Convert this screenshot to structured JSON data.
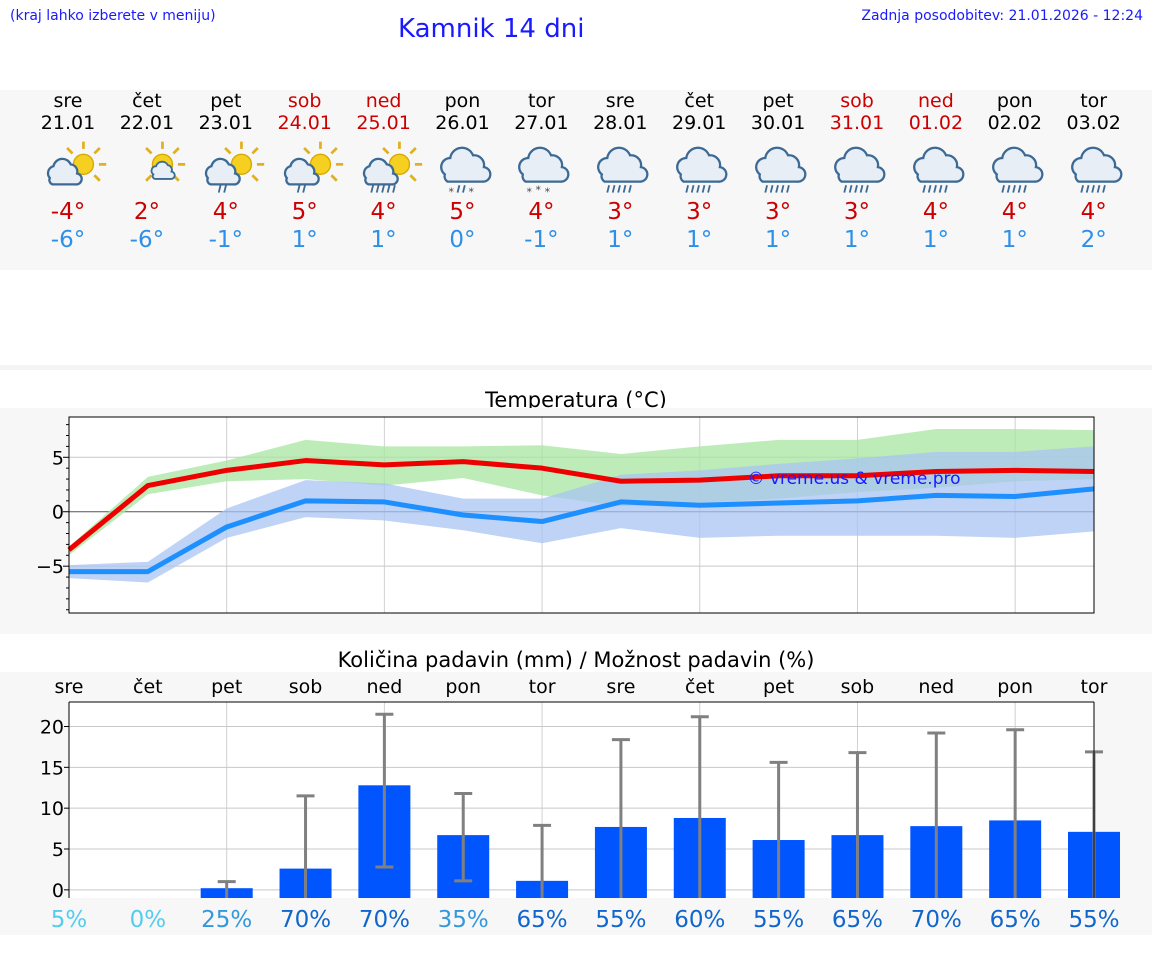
{
  "header": {
    "hint": "(kraj lahko izberete v meniju)",
    "title": "Kamnik 14 dni",
    "updated": "Zadnja posodobitev: 21.01.2026 - 12:24"
  },
  "days": [
    {
      "name": "sre",
      "date": "21.01",
      "weekend": false,
      "icon": "sun-cloud-icon",
      "max": "-4°",
      "min": "-6°"
    },
    {
      "name": "čet",
      "date": "22.01",
      "weekend": false,
      "icon": "sun-small-cloud-icon",
      "max": "2°",
      "min": "-6°"
    },
    {
      "name": "pet",
      "date": "23.01",
      "weekend": false,
      "icon": "sun-cloud-rain-icon",
      "max": "4°",
      "min": "-1°"
    },
    {
      "name": "sob",
      "date": "24.01",
      "weekend": true,
      "icon": "sun-cloud-rain-icon",
      "max": "5°",
      "min": "1°"
    },
    {
      "name": "ned",
      "date": "25.01",
      "weekend": true,
      "icon": "sun-cloud-heavy-rain-icon",
      "max": "4°",
      "min": "1°"
    },
    {
      "name": "pon",
      "date": "26.01",
      "weekend": false,
      "icon": "cloud-sleet-icon",
      "max": "5°",
      "min": "0°"
    },
    {
      "name": "tor",
      "date": "27.01",
      "weekend": false,
      "icon": "cloud-snow-icon",
      "max": "4°",
      "min": "-1°"
    },
    {
      "name": "sre",
      "date": "28.01",
      "weekend": false,
      "icon": "cloud-rain-icon",
      "max": "3°",
      "min": "1°"
    },
    {
      "name": "čet",
      "date": "29.01",
      "weekend": false,
      "icon": "cloud-rain-icon",
      "max": "3°",
      "min": "1°"
    },
    {
      "name": "pet",
      "date": "30.01",
      "weekend": false,
      "icon": "cloud-rain-icon",
      "max": "3°",
      "min": "1°"
    },
    {
      "name": "sob",
      "date": "31.01",
      "weekend": true,
      "icon": "cloud-rain-icon",
      "max": "3°",
      "min": "1°"
    },
    {
      "name": "ned",
      "date": "01.02",
      "weekend": true,
      "icon": "cloud-rain-icon",
      "max": "4°",
      "min": "1°"
    },
    {
      "name": "pon",
      "date": "02.02",
      "weekend": false,
      "icon": "cloud-rain-icon",
      "max": "4°",
      "min": "1°"
    },
    {
      "name": "tor",
      "date": "03.02",
      "weekend": false,
      "icon": "cloud-rain-icon",
      "max": "4°",
      "min": "2°"
    }
  ],
  "colors": {
    "max_line": "#ee0000",
    "min_line": "#1e8fff",
    "max_band": "#a8e6a0",
    "min_band": "#a8c4f2",
    "bar": "#0055ff",
    "whisker": "#808080",
    "weekend": "#cc0000"
  },
  "chart_data": [
    {
      "type": "line",
      "title": "Temperatura (°C)",
      "watermark": "© vreme.us & vreme.pro",
      "x": [
        0,
        1,
        2,
        3,
        4,
        5,
        6,
        7,
        8,
        9,
        10,
        11,
        12,
        13
      ],
      "ylim": [
        -9.3,
        8.7
      ],
      "yticks": [
        -5,
        0,
        5
      ],
      "ytick_labels": [
        "−5",
        "0",
        "5"
      ],
      "series": [
        {
          "name": "max",
          "values": [
            -3.5,
            2.4,
            3.8,
            4.7,
            4.3,
            4.6,
            4.0,
            2.8,
            2.9,
            3.3,
            3.3,
            3.7,
            3.8,
            3.7
          ],
          "band_low": [
            -4.0,
            1.6,
            2.8,
            3.0,
            2.4,
            3.1,
            1.5,
            0.5,
            0.8,
            1.2,
            1.8,
            2.2,
            2.8,
            3.0
          ],
          "band_high": [
            -3.2,
            3.2,
            4.7,
            6.6,
            6.0,
            6.0,
            6.1,
            5.3,
            6.0,
            6.6,
            6.6,
            7.6,
            7.6,
            7.5
          ]
        },
        {
          "name": "min",
          "values": [
            -5.5,
            -5.5,
            -1.4,
            1.0,
            0.9,
            -0.3,
            -0.9,
            0.9,
            0.6,
            0.8,
            1.0,
            1.5,
            1.4,
            2.1
          ],
          "band_low": [
            -6.1,
            -6.5,
            -2.4,
            -0.5,
            -0.8,
            -1.7,
            -2.9,
            -1.5,
            -2.4,
            -2.2,
            -2.2,
            -2.2,
            -2.4,
            -1.8
          ],
          "band_high": [
            -4.9,
            -4.6,
            0.3,
            2.9,
            2.6,
            1.2,
            1.2,
            3.4,
            3.8,
            4.4,
            4.9,
            5.5,
            5.5,
            6.0
          ]
        }
      ]
    },
    {
      "type": "bar",
      "title": "Količina padavin (mm) / Možnost padavin (%)",
      "categories": [
        "sre",
        "čet",
        "pet",
        "sob",
        "ned",
        "pon",
        "tor",
        "sre",
        "čet",
        "pet",
        "sob",
        "ned",
        "pon",
        "tor"
      ],
      "ylim": [
        -1,
        23
      ],
      "yticks": [
        0,
        5,
        10,
        15,
        20
      ],
      "values": [
        0,
        0,
        0.2,
        2.6,
        12.8,
        6.7,
        1.1,
        7.7,
        8.8,
        6.1,
        6.7,
        7.8,
        8.5,
        7.1
      ],
      "error_high": [
        0,
        0,
        1.0,
        11.5,
        21.5,
        11.8,
        7.9,
        18.4,
        21.2,
        15.6,
        16.8,
        19.2,
        19.6,
        16.9
      ],
      "error_low": [
        0,
        0,
        0,
        0,
        2.8,
        1.1,
        0,
        0,
        0,
        0,
        0,
        0,
        0,
        0
      ],
      "probability": [
        "5%",
        "0%",
        "25%",
        "70%",
        "70%",
        "35%",
        "65%",
        "55%",
        "60%",
        "55%",
        "65%",
        "70%",
        "65%",
        "55%"
      ],
      "probability_colors": [
        "#55ccee",
        "#55ccee",
        "#3399dd",
        "#1166cc",
        "#1166cc",
        "#3399dd",
        "#1166cc",
        "#1166cc",
        "#1166cc",
        "#1166cc",
        "#1166cc",
        "#1166cc",
        "#1166cc",
        "#1166cc"
      ]
    }
  ]
}
